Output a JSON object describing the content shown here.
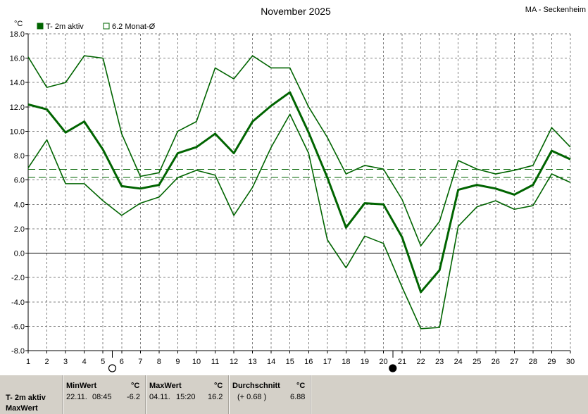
{
  "title": "November 2025",
  "station": "MA - Seckenheim",
  "unit_label": "°C",
  "legend": [
    {
      "label": "T- 2m aktiv",
      "filled": true
    },
    {
      "label": "6.2 Monat-Ø",
      "filled": false
    }
  ],
  "colors": {
    "series": "#006400",
    "grid": "#808080",
    "axis": "#000000",
    "footer_bg": "#d4d0c8"
  },
  "chart_data": {
    "type": "line",
    "x": [
      1,
      2,
      3,
      4,
      5,
      6,
      7,
      8,
      9,
      10,
      11,
      12,
      13,
      14,
      15,
      16,
      17,
      18,
      19,
      20,
      21,
      22,
      23,
      24,
      25,
      26,
      27,
      28,
      29,
      30
    ],
    "x_ticks": [
      "1",
      "2",
      "3",
      "4",
      "5",
      "6",
      "7",
      "8",
      "9",
      "10",
      "11",
      "12",
      "13",
      "14",
      "15",
      "16",
      "17",
      "18",
      "19",
      "20",
      "21",
      "22",
      "23",
      "24",
      "25",
      "26",
      "27",
      "28",
      "29",
      "30"
    ],
    "y_ticks": [
      "18.0",
      "16.0",
      "14.0",
      "12.0",
      "10.0",
      "8.0",
      "6.0",
      "4.0",
      "2.0",
      "0.0",
      "-2.0",
      "-4.0",
      "-6.0",
      "-8.0"
    ],
    "xlim": [
      1,
      30
    ],
    "ylim": [
      -8,
      18
    ],
    "grid": true,
    "series": [
      {
        "role": "max",
        "values": [
          16.1,
          13.6,
          14.0,
          16.2,
          16.0,
          9.8,
          6.3,
          6.6,
          10.0,
          10.8,
          15.2,
          14.3,
          16.2,
          15.2,
          15.2,
          12.0,
          9.5,
          6.5,
          7.2,
          6.9,
          4.4,
          0.6,
          2.6,
          7.6,
          6.9,
          6.5,
          6.8,
          7.2,
          10.3,
          8.7
        ]
      },
      {
        "role": "mean",
        "values": [
          12.2,
          11.8,
          9.9,
          10.8,
          8.5,
          5.5,
          5.3,
          5.6,
          8.2,
          8.7,
          9.8,
          8.2,
          10.8,
          12.1,
          13.2,
          9.9,
          6.2,
          2.1,
          4.1,
          4.0,
          1.3,
          -3.2,
          -1.4,
          5.2,
          5.6,
          5.3,
          4.8,
          5.6,
          8.4,
          7.7
        ]
      },
      {
        "role": "min",
        "values": [
          7.0,
          9.3,
          5.7,
          5.7,
          4.3,
          3.1,
          4.1,
          4.6,
          6.2,
          6.8,
          6.4,
          3.1,
          5.4,
          8.7,
          11.4,
          8.2,
          1.1,
          -1.2,
          1.4,
          0.8,
          -2.8,
          -6.2,
          -6.1,
          2.2,
          3.8,
          4.3,
          3.6,
          3.9,
          6.5,
          5.8
        ]
      }
    ],
    "reference_lines": [
      6.88,
      6.2
    ],
    "moon_phases": [
      {
        "day": 5.5,
        "phase": "full-moon"
      },
      {
        "day": 20.5,
        "phase": "new-moon"
      }
    ]
  },
  "footer": {
    "row_label_1": "T- 2m aktiv",
    "row_label_2": "MaxWert",
    "min_header": "MinWert",
    "min_unit": "°C",
    "min_date": "22.11.",
    "min_time": "08:45",
    "min_value": "-6.2",
    "max_header": "MaxWert",
    "max_unit": "°C",
    "max_date": "04.11.",
    "max_time": "15:20",
    "max_value": "16.2",
    "avg_header": "Durchschnitt",
    "avg_unit": "°C",
    "avg_diff": "(+ 0.68 )",
    "avg_value": "6.88"
  }
}
